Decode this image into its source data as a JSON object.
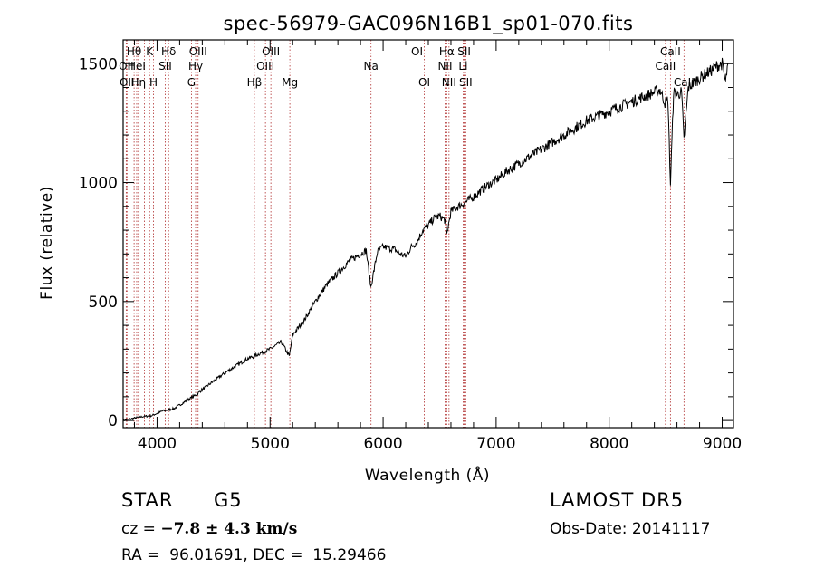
{
  "chart_data": {
    "type": "line",
    "title": "spec-56979-GAC096N16B1_sp01-070.fits",
    "xlabel": "Wavelength (Å)",
    "ylabel": "Flux (relative)",
    "xlim": [
      3700,
      9100
    ],
    "ylim": [
      -30,
      1600
    ],
    "x_ticks": [
      4000,
      5000,
      6000,
      7000,
      8000,
      9000
    ],
    "x_tick_labels": [
      "4000",
      "5000",
      "6000",
      "7000",
      "8000",
      "9000"
    ],
    "y_ticks": [
      0,
      500,
      1000,
      1500
    ],
    "y_tick_labels": [
      "0",
      "500",
      "1000",
      "1500"
    ],
    "grid": false,
    "line_color": "#000000",
    "marker_color": "#b03030",
    "series": [
      {
        "x": [
          3700,
          3750,
          3800,
          3850,
          3900,
          3950,
          4000,
          4050,
          4100,
          4150,
          4200,
          4250,
          4300,
          4350,
          4400,
          4500,
          4600,
          4700,
          4800,
          4860,
          4900,
          5000,
          5100,
          5170,
          5200,
          5300,
          5400,
          5500,
          5600,
          5700,
          5800,
          5850,
          5892,
          5950,
          6000,
          6100,
          6150,
          6200,
          6250,
          6300,
          6350,
          6400,
          6450,
          6500,
          6550,
          6563,
          6600,
          6700,
          6800,
          6900,
          7000,
          7100,
          7200,
          7300,
          7400,
          7500,
          7600,
          7700,
          7800,
          7900,
          8000,
          8100,
          8200,
          8300,
          8400,
          8450,
          8498,
          8520,
          8542,
          8570,
          8600,
          8640,
          8662,
          8700,
          8800,
          8900,
          8950,
          9000,
          9030,
          9050
        ],
        "y": [
          0,
          5,
          10,
          15,
          18,
          20,
          30,
          40,
          45,
          50,
          65,
          80,
          95,
          110,
          130,
          165,
          200,
          230,
          260,
          270,
          280,
          300,
          330,
          270,
          360,
          420,
          500,
          570,
          620,
          670,
          700,
          715,
          560,
          710,
          730,
          720,
          700,
          690,
          730,
          750,
          800,
          820,
          850,
          860,
          840,
          780,
          880,
          910,
          940,
          980,
          1010,
          1050,
          1080,
          1110,
          1140,
          1170,
          1200,
          1230,
          1260,
          1280,
          1300,
          1320,
          1340,
          1360,
          1380,
          1390,
          1330,
          1350,
          990,
          1380,
          1370,
          1380,
          1180,
          1400,
          1440,
          1470,
          1490,
          1500,
          1420,
          1500
        ]
      }
    ],
    "lines": [
      {
        "wl": 3797,
        "label": "Hθ",
        "row": 1
      },
      {
        "wl": 3727,
        "label": "OII",
        "row": 2
      },
      {
        "wl": 3734,
        "label": "OII",
        "row": 3
      },
      {
        "wl": 3820,
        "label": "HeI",
        "row": 2
      },
      {
        "wl": 3835,
        "label": "Hη",
        "row": 3
      },
      {
        "wl": 3889,
        "label": "",
        "row": 0
      },
      {
        "wl": 3934,
        "label": "K",
        "row": 1
      },
      {
        "wl": 3969,
        "label": "H",
        "row": 3
      },
      {
        "wl": 4072,
        "label": "SII",
        "row": 2
      },
      {
        "wl": 4102,
        "label": "Hδ",
        "row": 1
      },
      {
        "wl": 4304,
        "label": "G",
        "row": 3
      },
      {
        "wl": 4341,
        "label": "Hγ",
        "row": 2
      },
      {
        "wl": 4363,
        "label": "OIII",
        "row": 1
      },
      {
        "wl": 4861,
        "label": "Hβ",
        "row": 3
      },
      {
        "wl": 4959,
        "label": "OIII",
        "row": 2
      },
      {
        "wl": 5007,
        "label": "OIII",
        "row": 1
      },
      {
        "wl": 5175,
        "label": "Mg",
        "row": 3
      },
      {
        "wl": 5893,
        "label": "Na",
        "row": 2
      },
      {
        "wl": 6300,
        "label": "OI",
        "row": 1
      },
      {
        "wl": 6364,
        "label": "OI",
        "row": 3
      },
      {
        "wl": 6548,
        "label": "NII",
        "row": 2
      },
      {
        "wl": 6563,
        "label": "Hα",
        "row": 1
      },
      {
        "wl": 6583,
        "label": "NII",
        "row": 3
      },
      {
        "wl": 6708,
        "label": "Li",
        "row": 2
      },
      {
        "wl": 6717,
        "label": "SII",
        "row": 1
      },
      {
        "wl": 6731,
        "label": "SII",
        "row": 3
      },
      {
        "wl": 8498,
        "label": "CaII",
        "row": 2
      },
      {
        "wl": 8542,
        "label": "CaII",
        "row": 1
      },
      {
        "wl": 8662,
        "label": "CaII",
        "row": 3
      }
    ]
  },
  "info": {
    "class_label": "STAR",
    "subclass_label": "G5",
    "survey_label": "LAMOST DR5",
    "cz_prefix": "cz = ",
    "cz_value": "−7.8 ± 4.3 km/s",
    "obs_date": "Obs-Date: 20141117",
    "radec": "RA =  96.01691, DEC =  15.29466"
  }
}
